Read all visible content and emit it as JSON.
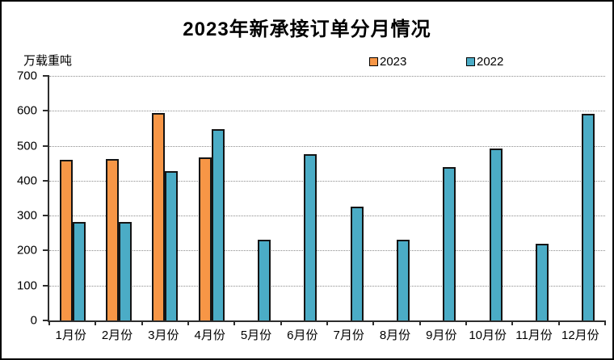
{
  "chart_data": {
    "type": "bar",
    "title": "2023年新承接订单分月情况",
    "unit_label": "万载重吨",
    "categories": [
      "1月份",
      "2月份",
      "3月份",
      "4月份",
      "5月份",
      "6月份",
      "7月份",
      "8月份",
      "9月份",
      "10月份",
      "11月份",
      "12月份"
    ],
    "series": [
      {
        "name": "2023",
        "color": "#F79646",
        "values": [
          460,
          462,
          594,
          467,
          null,
          null,
          null,
          null,
          null,
          null,
          null,
          null
        ]
      },
      {
        "name": "2022",
        "color": "#4BACC6",
        "values": [
          281,
          283,
          428,
          547,
          230,
          477,
          326,
          232,
          440,
          493,
          220,
          592
        ]
      }
    ],
    "ylim": [
      0,
      700
    ],
    "ytick_step": 100,
    "xlabel": "",
    "ylabel": "万载重吨",
    "grid": "horizontal-dotted",
    "legend_position": "top"
  },
  "style_colors": {
    "bar_border": "#141414",
    "axis": "#2e2e2e",
    "gridline": "#8c8c8c",
    "background": "#ffffff",
    "text": "#000000"
  }
}
